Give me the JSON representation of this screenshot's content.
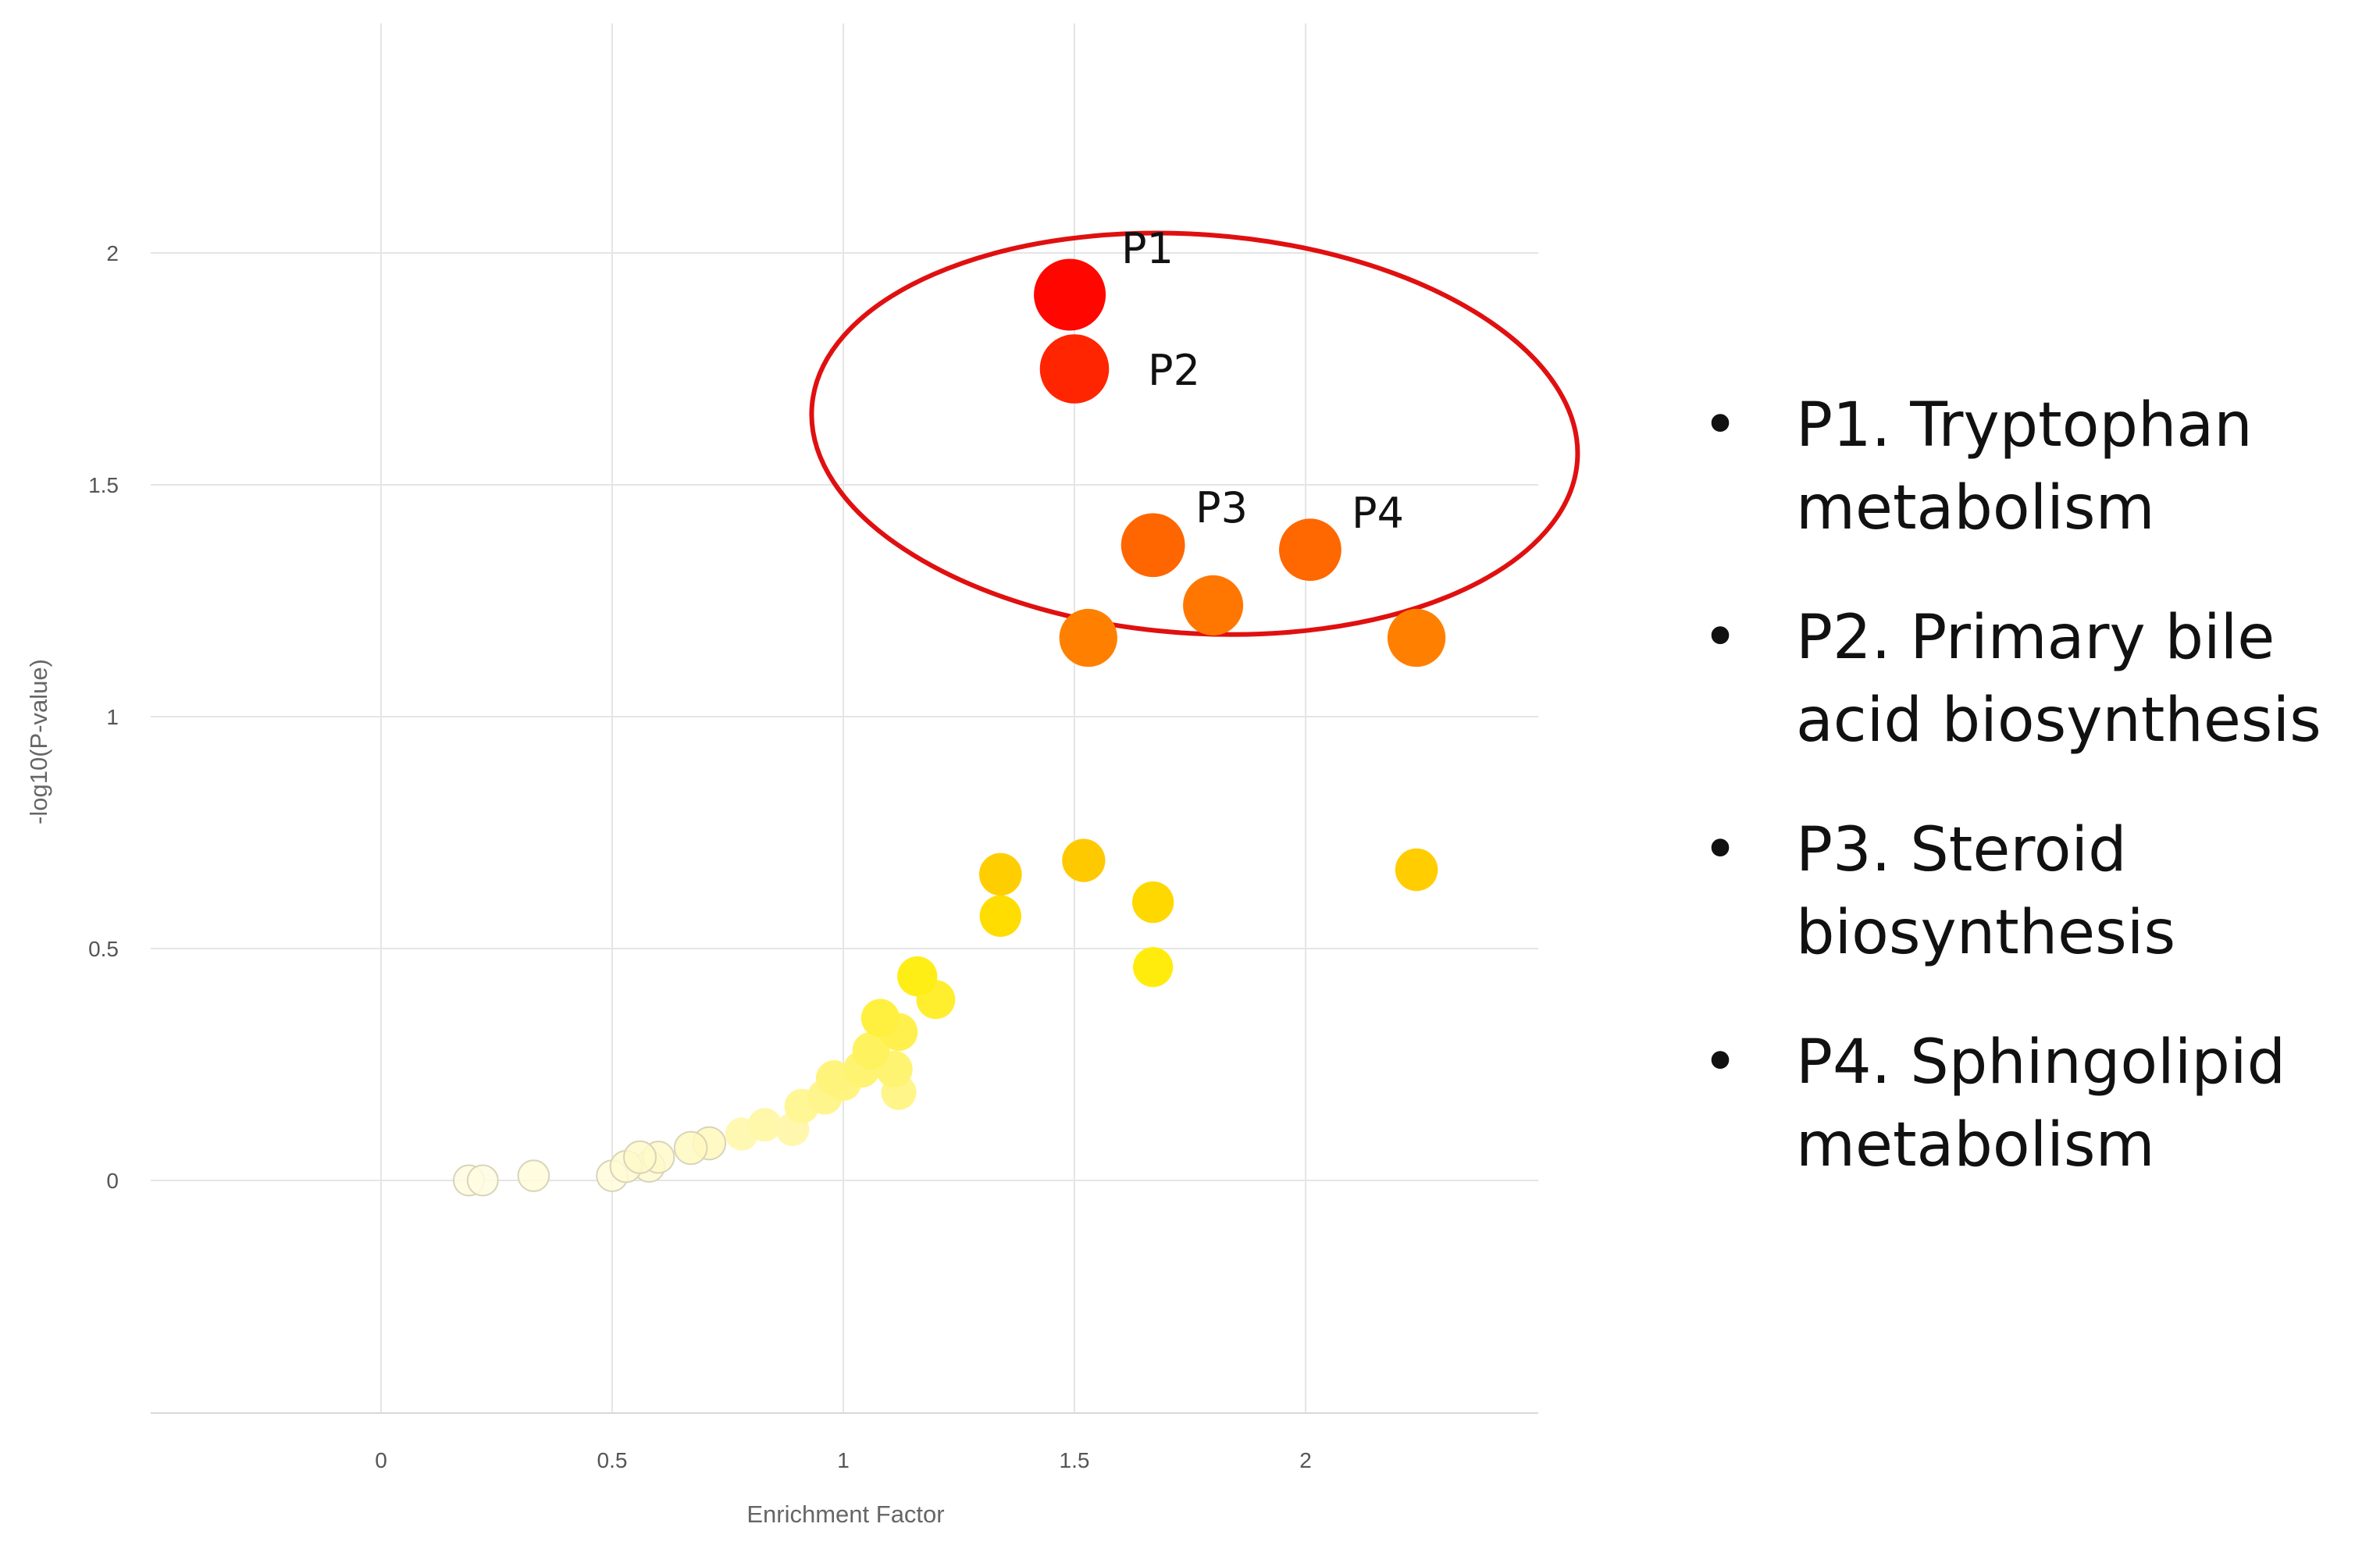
{
  "chart_data": {
    "type": "scatter",
    "title": "",
    "xlabel": "Enrichment Factor",
    "ylabel": "-log10(P-value)",
    "xlim": [
      -0.5,
      2.5
    ],
    "ylim": [
      -0.5,
      2.5
    ],
    "xticks": [
      0,
      0.5,
      1,
      1.5,
      2
    ],
    "xtick_labels": [
      "0",
      "0.5",
      "1",
      "1.5",
      "2"
    ],
    "yticks": [
      0,
      0.5,
      1,
      1.5,
      2
    ],
    "ytick_labels": [
      "0",
      "0.5",
      "1",
      "1.5",
      "2"
    ],
    "grid": true,
    "color_scale": [
      "#fffbe0",
      "#ffeb00",
      "#ff9a00",
      "#ff5a00",
      "#ff0000"
    ],
    "points": [
      {
        "x": 1.49,
        "y": 1.91,
        "size": 1.0,
        "label": "P1"
      },
      {
        "x": 1.5,
        "y": 1.75,
        "size": 0.95,
        "label": "P2"
      },
      {
        "x": 1.67,
        "y": 1.37,
        "size": 0.85,
        "label": "P3"
      },
      {
        "x": 2.01,
        "y": 1.36,
        "size": 0.82,
        "label": "P4"
      },
      {
        "x": 1.8,
        "y": 1.24,
        "size": 0.78,
        "label": ""
      },
      {
        "x": 1.53,
        "y": 1.17,
        "size": 0.74,
        "label": ""
      },
      {
        "x": 2.24,
        "y": 1.17,
        "size": 0.74,
        "label": ""
      },
      {
        "x": 1.52,
        "y": 0.69,
        "size": 0.46,
        "label": ""
      },
      {
        "x": 2.24,
        "y": 0.67,
        "size": 0.45,
        "label": ""
      },
      {
        "x": 1.34,
        "y": 0.66,
        "size": 0.45,
        "label": ""
      },
      {
        "x": 1.67,
        "y": 0.6,
        "size": 0.43,
        "label": ""
      },
      {
        "x": 1.34,
        "y": 0.57,
        "size": 0.43,
        "label": ""
      },
      {
        "x": 1.67,
        "y": 0.46,
        "size": 0.4,
        "label": ""
      },
      {
        "x": 1.16,
        "y": 0.44,
        "size": 0.4,
        "label": ""
      },
      {
        "x": 1.2,
        "y": 0.39,
        "size": 0.38,
        "label": ""
      },
      {
        "x": 1.08,
        "y": 0.35,
        "size": 0.37,
        "label": ""
      },
      {
        "x": 1.12,
        "y": 0.32,
        "size": 0.36,
        "label": ""
      },
      {
        "x": 1.06,
        "y": 0.28,
        "size": 0.35,
        "label": ""
      },
      {
        "x": 1.11,
        "y": 0.24,
        "size": 0.34,
        "label": ""
      },
      {
        "x": 1.04,
        "y": 0.24,
        "size": 0.34,
        "label": ""
      },
      {
        "x": 0.98,
        "y": 0.22,
        "size": 0.33,
        "label": ""
      },
      {
        "x": 1.0,
        "y": 0.21,
        "size": 0.32,
        "label": ""
      },
      {
        "x": 1.12,
        "y": 0.19,
        "size": 0.31,
        "label": ""
      },
      {
        "x": 0.96,
        "y": 0.18,
        "size": 0.31,
        "label": ""
      },
      {
        "x": 0.91,
        "y": 0.16,
        "size": 0.3,
        "label": ""
      },
      {
        "x": 0.83,
        "y": 0.12,
        "size": 0.28,
        "label": ""
      },
      {
        "x": 0.89,
        "y": 0.11,
        "size": 0.28,
        "label": ""
      },
      {
        "x": 0.78,
        "y": 0.1,
        "size": 0.27,
        "label": ""
      },
      {
        "x": 0.71,
        "y": 0.08,
        "size": 0.26,
        "label": ""
      },
      {
        "x": 0.67,
        "y": 0.07,
        "size": 0.26,
        "label": ""
      },
      {
        "x": 0.56,
        "y": 0.05,
        "size": 0.25,
        "label": ""
      },
      {
        "x": 0.6,
        "y": 0.05,
        "size": 0.24,
        "label": ""
      },
      {
        "x": 0.53,
        "y": 0.03,
        "size": 0.24,
        "label": ""
      },
      {
        "x": 0.58,
        "y": 0.03,
        "size": 0.23,
        "label": ""
      },
      {
        "x": 0.33,
        "y": 0.01,
        "size": 0.23,
        "label": ""
      },
      {
        "x": 0.5,
        "y": 0.01,
        "size": 0.23,
        "label": ""
      },
      {
        "x": 0.19,
        "y": 0.0,
        "size": 0.22,
        "label": ""
      },
      {
        "x": 0.22,
        "y": 0.0,
        "size": 0.22,
        "label": ""
      }
    ],
    "highlight": {
      "shape": "ellipse",
      "stroke": "#e01010",
      "center_data": [
        1.76,
        1.61
      ],
      "rx_data": 0.83,
      "ry_data": 0.43
    },
    "annotations": [
      "P1",
      "P2",
      "P3",
      "P4"
    ]
  },
  "legend": {
    "bullet": "•",
    "items": [
      {
        "id": "P1",
        "text": "P1. Tryptophan metabolism"
      },
      {
        "id": "P2",
        "text": "P2. Primary bile acid biosynthesis"
      },
      {
        "id": "P3",
        "text": "P3. Steroid biosynthesis"
      },
      {
        "id": "P4",
        "text": "P4. Sphingolipid metabolism"
      }
    ]
  }
}
